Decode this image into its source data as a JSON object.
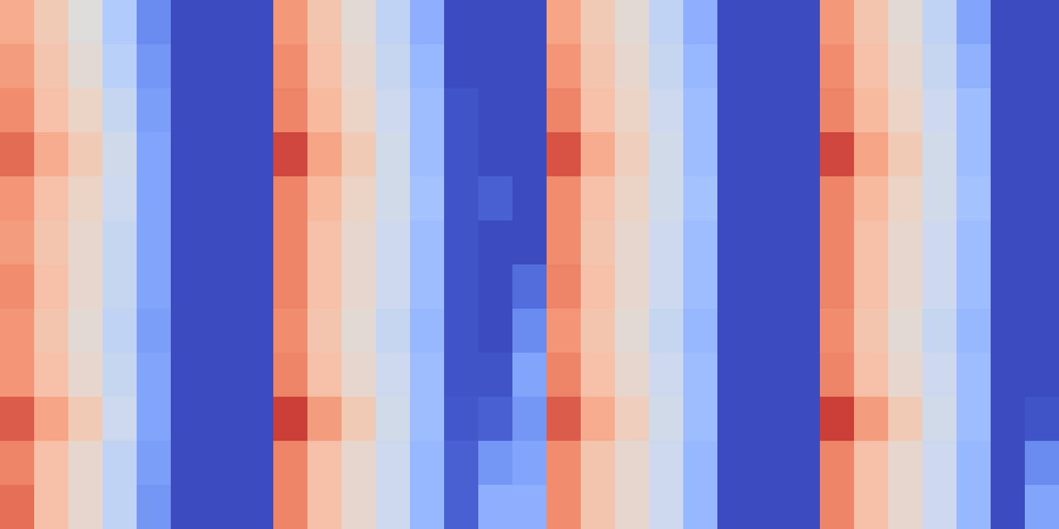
{
  "chart_data": {
    "type": "heatmap",
    "tick_labels": false,
    "value_range": [
      0,
      1
    ],
    "cells": [
      [
        0.7,
        0.6,
        0.5,
        0.35,
        0.15,
        0,
        0,
        0,
        0.75,
        0.62,
        0.52,
        0.4,
        0.25,
        0,
        0,
        0,
        0.72,
        0.6,
        0.52,
        0.4,
        0.25,
        0,
        0,
        0,
        0.75,
        0.62,
        0.52,
        0.4,
        0.22,
        0,
        0
      ],
      [
        0.74,
        0.62,
        0.52,
        0.38,
        0.18,
        0,
        0,
        0,
        0.78,
        0.64,
        0.54,
        0.42,
        0.28,
        0,
        0,
        0,
        0.76,
        0.62,
        0.54,
        0.42,
        0.28,
        0,
        0,
        0,
        0.78,
        0.64,
        0.54,
        0.42,
        0.26,
        0,
        0
      ],
      [
        0.78,
        0.64,
        0.56,
        0.42,
        0.2,
        0,
        0,
        0,
        0.8,
        0.66,
        0.56,
        0.44,
        0.3,
        0.02,
        0,
        0,
        0.8,
        0.64,
        0.56,
        0.44,
        0.3,
        0,
        0,
        0,
        0.8,
        0.66,
        0.56,
        0.44,
        0.3,
        0,
        0
      ],
      [
        0.85,
        0.7,
        0.6,
        0.45,
        0.22,
        0,
        0,
        0,
        0.92,
        0.72,
        0.6,
        0.46,
        0.3,
        0.02,
        0,
        0,
        0.9,
        0.7,
        0.58,
        0.46,
        0.3,
        0,
        0,
        0,
        0.92,
        0.72,
        0.6,
        0.46,
        0.3,
        0,
        0
      ],
      [
        0.76,
        0.64,
        0.56,
        0.44,
        0.22,
        0,
        0,
        0,
        0.8,
        0.66,
        0.56,
        0.46,
        0.32,
        0.02,
        0.05,
        0,
        0.78,
        0.64,
        0.56,
        0.46,
        0.32,
        0,
        0,
        0,
        0.8,
        0.66,
        0.56,
        0.46,
        0.32,
        0,
        0
      ],
      [
        0.74,
        0.62,
        0.54,
        0.42,
        0.22,
        0,
        0,
        0,
        0.8,
        0.64,
        0.54,
        0.44,
        0.3,
        0.02,
        0,
        0,
        0.78,
        0.62,
        0.54,
        0.44,
        0.3,
        0,
        0,
        0,
        0.8,
        0.64,
        0.54,
        0.44,
        0.3,
        0,
        0
      ],
      [
        0.78,
        0.64,
        0.54,
        0.42,
        0.22,
        0,
        0,
        0,
        0.8,
        0.64,
        0.54,
        0.44,
        0.3,
        0.02,
        0,
        0.08,
        0.8,
        0.64,
        0.54,
        0.44,
        0.3,
        0,
        0,
        0,
        0.8,
        0.64,
        0.54,
        0.44,
        0.3,
        0,
        0
      ],
      [
        0.76,
        0.62,
        0.52,
        0.4,
        0.2,
        0,
        0,
        0,
        0.78,
        0.62,
        0.52,
        0.42,
        0.28,
        0.02,
        0,
        0.15,
        0.76,
        0.62,
        0.52,
        0.42,
        0.28,
        0,
        0,
        0,
        0.78,
        0.62,
        0.52,
        0.42,
        0.28,
        0,
        0
      ],
      [
        0.76,
        0.64,
        0.54,
        0.42,
        0.22,
        0,
        0,
        0,
        0.8,
        0.64,
        0.54,
        0.44,
        0.3,
        0.02,
        0.02,
        0.22,
        0.8,
        0.64,
        0.54,
        0.44,
        0.3,
        0,
        0,
        0,
        0.8,
        0.64,
        0.54,
        0.44,
        0.3,
        0,
        0
      ],
      [
        0.88,
        0.72,
        0.6,
        0.44,
        0.22,
        0,
        0,
        0,
        0.93,
        0.74,
        0.6,
        0.46,
        0.3,
        0.03,
        0.05,
        0.18,
        0.88,
        0.7,
        0.58,
        0.46,
        0.3,
        0,
        0,
        0,
        0.93,
        0.74,
        0.6,
        0.46,
        0.3,
        0,
        0.02
      ],
      [
        0.8,
        0.64,
        0.54,
        0.4,
        0.2,
        0,
        0,
        0,
        0.8,
        0.64,
        0.54,
        0.44,
        0.28,
        0.05,
        0.18,
        0.22,
        0.78,
        0.62,
        0.54,
        0.44,
        0.28,
        0,
        0,
        0,
        0.8,
        0.64,
        0.54,
        0.44,
        0.28,
        0,
        0.15
      ],
      [
        0.84,
        0.64,
        0.54,
        0.4,
        0.18,
        0,
        0,
        0,
        0.8,
        0.64,
        0.54,
        0.44,
        0.28,
        0.05,
        0.25,
        0.25,
        0.78,
        0.62,
        0.54,
        0.44,
        0.28,
        0,
        0,
        0,
        0.8,
        0.64,
        0.54,
        0.44,
        0.28,
        0,
        0.22
      ]
    ]
  }
}
